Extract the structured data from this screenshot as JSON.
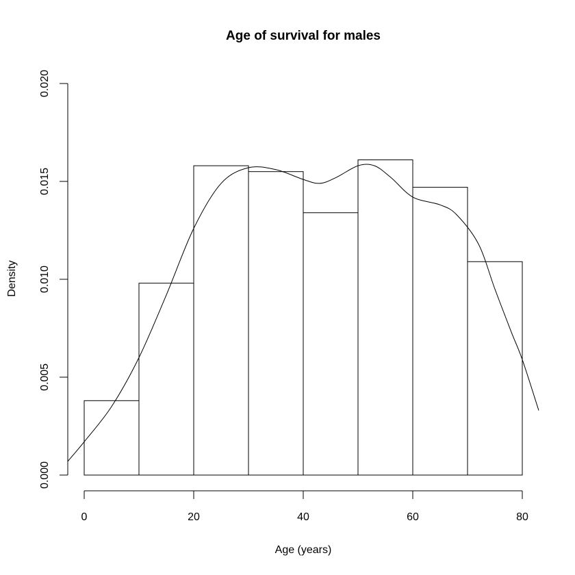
{
  "chart_data": {
    "type": "histogram",
    "title": "Age of survival for males",
    "xlabel": "Age (years)",
    "ylabel": "Density",
    "xlim": [
      -3,
      83
    ],
    "ylim": [
      0,
      0.02
    ],
    "x_ticks": [
      0,
      20,
      40,
      60,
      80
    ],
    "x_tick_labels": [
      "0",
      "20",
      "40",
      "60",
      "80"
    ],
    "y_ticks": [
      0,
      0.005,
      0.01,
      0.015,
      0.02
    ],
    "y_tick_labels": [
      "0.000",
      "0.005",
      "0.010",
      "0.015",
      "0.020"
    ],
    "bins": [
      {
        "x0": 0,
        "x1": 10,
        "density": 0.0038
      },
      {
        "x0": 10,
        "x1": 20,
        "density": 0.0098
      },
      {
        "x0": 20,
        "x1": 30,
        "density": 0.0158
      },
      {
        "x0": 30,
        "x1": 40,
        "density": 0.0155
      },
      {
        "x0": 40,
        "x1": 50,
        "density": 0.0134
      },
      {
        "x0": 50,
        "x1": 60,
        "density": 0.0161
      },
      {
        "x0": 60,
        "x1": 70,
        "density": 0.0147
      },
      {
        "x0": 70,
        "x1": 80,
        "density": 0.0109
      }
    ],
    "density_curve": {
      "x": [
        -3,
        0,
        5,
        10,
        15,
        20,
        25,
        30,
        35,
        40,
        43,
        46,
        50,
        53,
        56,
        60,
        65,
        68,
        72,
        75,
        78,
        80,
        83
      ],
      "y": [
        0.0007,
        0.0017,
        0.0035,
        0.006,
        0.0092,
        0.0126,
        0.0149,
        0.0157,
        0.0156,
        0.0151,
        0.0149,
        0.0152,
        0.0158,
        0.0158,
        0.0152,
        0.0142,
        0.0138,
        0.0133,
        0.0118,
        0.0095,
        0.0073,
        0.0059,
        0.0033
      ]
    },
    "grid": false,
    "legend": "none"
  },
  "colors": {
    "background": "#ffffff",
    "ink": "#000000"
  }
}
